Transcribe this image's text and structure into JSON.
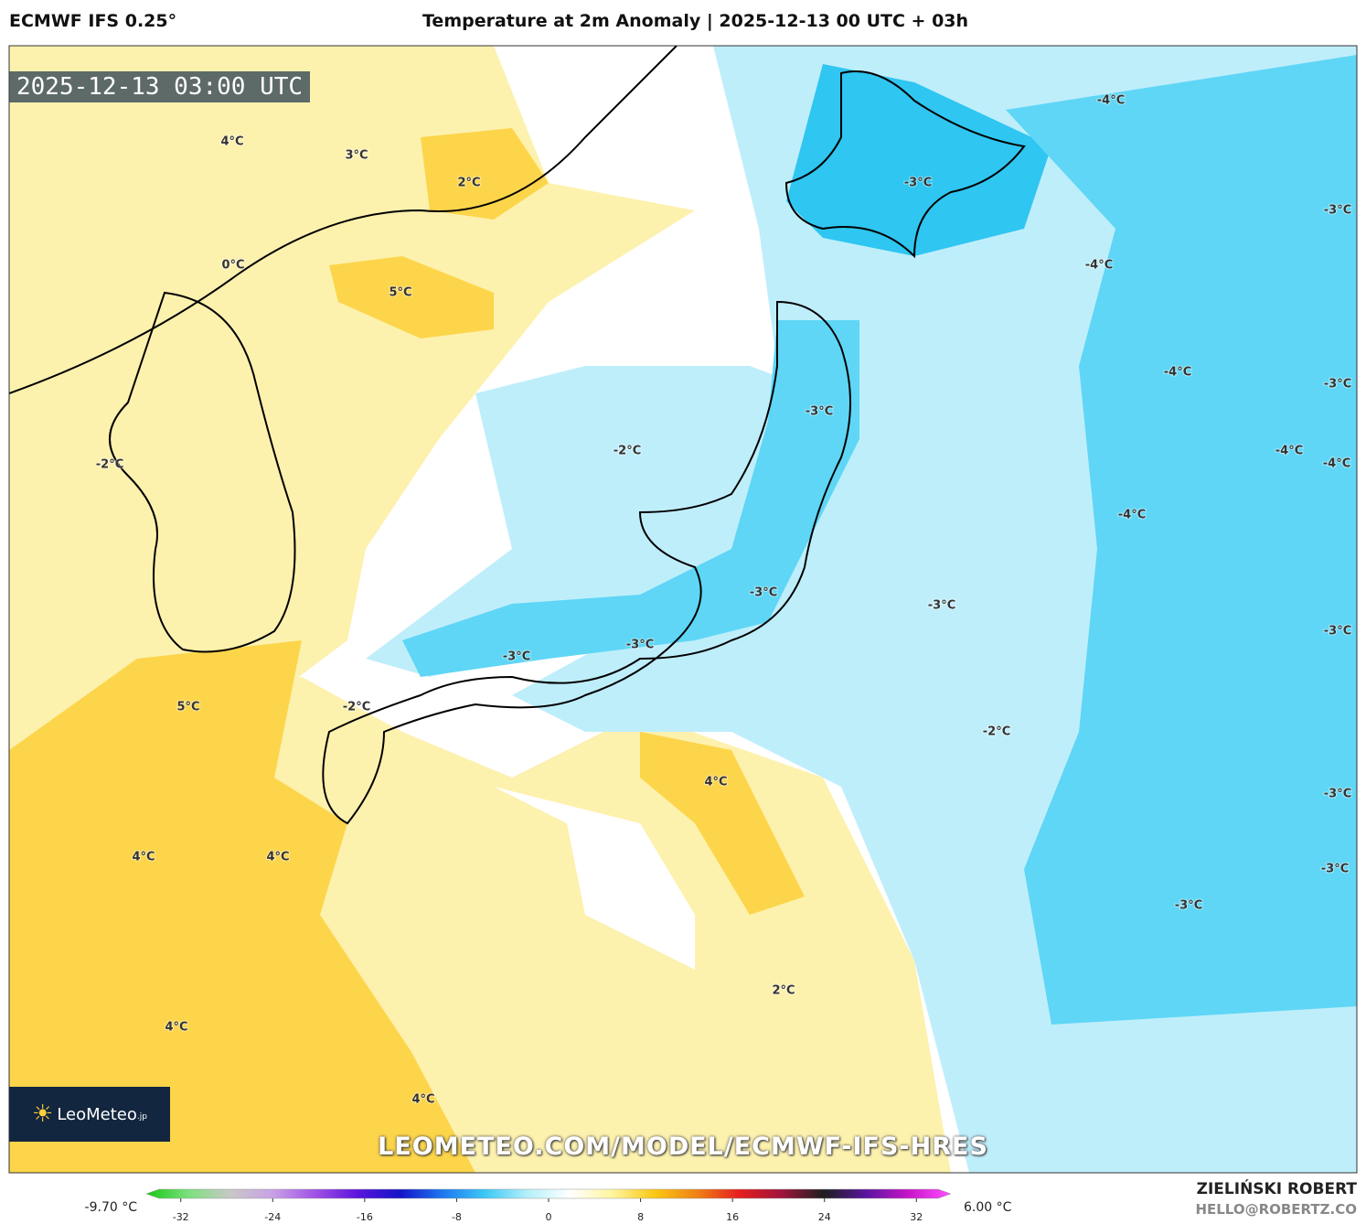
{
  "header": {
    "model": "ECMWF IFS 0.25°",
    "title": "Temperature at 2m Anomaly | 2025-12-13 00 UTC + 03h"
  },
  "timestamp": "2025-12-13 03:00 UTC",
  "contour_labels": [
    "4°C",
    "3°C",
    "2°C",
    "0°C",
    "5°C",
    "-2°C",
    "-2°C",
    "-3°C",
    "-4°C",
    "-3°C",
    "-4°C",
    "-4°C",
    "-3°C",
    "-3°C",
    "-4°C",
    "-4°C",
    "-4°C",
    "-3°C",
    "-3°C",
    "-3°C",
    "-3°C",
    "-3°C",
    "-2°C",
    "5°C",
    "-2°C",
    "4°C",
    "-3°C",
    "4°C",
    "4°C",
    "-3°C",
    "-3°C",
    "2°C",
    "4°C",
    "4°C"
  ],
  "logo": {
    "name": "LeoMeteo",
    "suffix": ".jp"
  },
  "watermark": "LEOMETEO.COM/MODEL/ECMWF-IFS-HRES",
  "colorbar": {
    "min_label": "-9.70 °C",
    "max_label": "6.00 °C",
    "lim": [
      -35,
      35
    ],
    "ticks": [
      -32,
      -24,
      -16,
      -8,
      0,
      8,
      16,
      24,
      32
    ]
  },
  "footer": {
    "author": "ZIELIŃSKI ROBERT",
    "email": "HELLO@ROBERTZ.CO"
  }
}
